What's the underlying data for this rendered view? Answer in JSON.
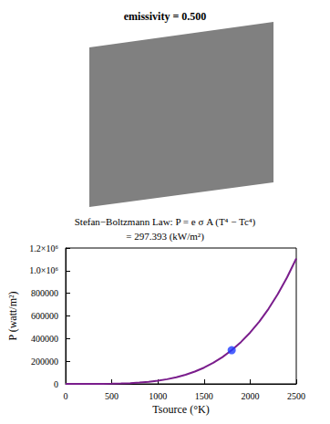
{
  "chart_data": {
    "type": "line",
    "title": "Stefan−Boltzmann Law: P = e σ A (T⁴ − Tc⁴)",
    "subtitle": "= 297.393 (kW/m²)",
    "xlabel": "Tsource (°K)",
    "ylabel": "P (watt/m²)",
    "x": [
      0,
      100,
      200,
      300,
      400,
      500,
      600,
      700,
      800,
      900,
      1000,
      1100,
      1200,
      1300,
      1400,
      1500,
      1600,
      1700,
      1800,
      1900,
      2000,
      2100,
      2200,
      2300,
      2400,
      2500
    ],
    "values": [
      0,
      0,
      0,
      0,
      500,
      1500,
      3400,
      6600,
      11400,
      18400,
      28100,
      41300,
      58600,
      80700,
      108700,
      143300,
      185600,
      236600,
      297400,
      369200,
      453400,
      551100,
      663900,
      793100,
      940400,
      1107200
    ],
    "color": "#7a1d8c",
    "marker": "none",
    "xlim": [
      0,
      2500
    ],
    "xticks": [
      0,
      500,
      1000,
      1500,
      2000,
      2500
    ],
    "ylim": [
      0,
      1200000
    ],
    "yticks": [
      0,
      200000,
      400000,
      600000,
      800000,
      {
        "value": 1000000,
        "label": "1.0×10⁶"
      },
      {
        "value": 1200000,
        "label": "1.2×10⁶"
      }
    ],
    "grid": false,
    "highlight": {
      "x": 1800,
      "y": 297393,
      "color": "#1f3cff"
    }
  },
  "diagram": {
    "label": "emissivity = 0.500",
    "color": "#808080"
  }
}
